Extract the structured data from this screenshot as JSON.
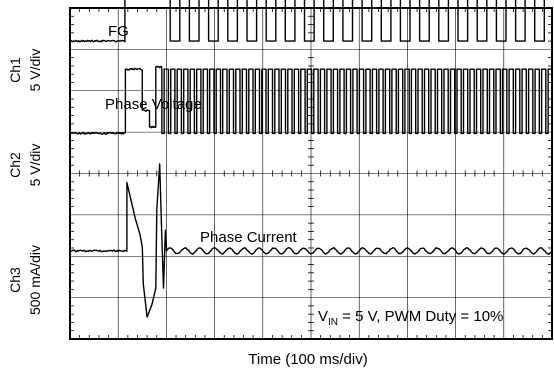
{
  "chart_data": {
    "type": "line",
    "title": "",
    "xlabel": "Time (100 ms/div)",
    "grid": true,
    "x_divisions": 10,
    "y_divisions": 8,
    "x_unit_per_div_ms": 100,
    "channels": [
      {
        "id": "Ch1",
        "scale": "5 V/div",
        "trace_label": "FG",
        "baseline_div": 7.2,
        "segments": [
          {
            "t_ms": [
              0,
              114
            ],
            "level_div": 0,
            "form": "flat"
          },
          {
            "t_ms": [
              114,
              204
            ],
            "level_div": 1.55,
            "form": "flat"
          },
          {
            "t_ms": [
              204,
              1000
            ],
            "form": "square",
            "low_div": 0,
            "high_div": 1.55,
            "cycles": 20
          }
        ]
      },
      {
        "id": "Ch2",
        "scale": "5 V/div",
        "trace_label": "Phase Voltage",
        "baseline_div": 4.97,
        "segments": [
          {
            "t_ms": [
              0,
              115
            ],
            "level_div": 0,
            "form": "flat"
          },
          {
            "t_ms": [
              115,
              150
            ],
            "level_div": 1.55,
            "form": "flat"
          },
          {
            "t_ms": [
              150,
              165
            ],
            "level_div": 0.55,
            "form": "flat"
          },
          {
            "t_ms": [
              165,
              178
            ],
            "level_div": 0.15,
            "form": "flat"
          },
          {
            "t_ms": [
              178,
              190
            ],
            "level_div": 1.6,
            "form": "flat"
          },
          {
            "t_ms": [
              190,
              1000
            ],
            "form": "pwm",
            "low_div": 0,
            "high_div": 1.55,
            "cycles": 60
          }
        ]
      },
      {
        "id": "Ch3",
        "scale": "500 mA/div",
        "trace_label": "Phase Current",
        "baseline_div": 2.13,
        "segments": [
          {
            "t_ms": [
              0,
              118
            ],
            "level_div": 0,
            "form": "flat"
          },
          {
            "t_ms": [
              118,
              200
            ],
            "form": "transient",
            "points_div": [
              [
                118,
                1.65
              ],
              [
                125,
                1.3
              ],
              [
                135,
                0.8
              ],
              [
                145,
                0.4
              ],
              [
                150,
                0.1
              ],
              [
                152,
                -0.8
              ],
              [
                160,
                -1.6
              ],
              [
                170,
                -1.3
              ],
              [
                178,
                -0.9
              ],
              [
                180,
                1.0
              ],
              [
                186,
                2.1
              ],
              [
                190,
                0.5
              ],
              [
                194,
                -0.9
              ],
              [
                198,
                0.5
              ],
              [
                200,
                0.1
              ]
            ]
          },
          {
            "t_ms": [
              200,
              1000
            ],
            "form": "ripple",
            "amp_div": 0.07,
            "cycles": 26
          }
        ]
      }
    ],
    "annotation": {
      "base": "V",
      "subscript": "IN",
      "rest": " = 5 V, PWM Duty = 10%"
    }
  }
}
